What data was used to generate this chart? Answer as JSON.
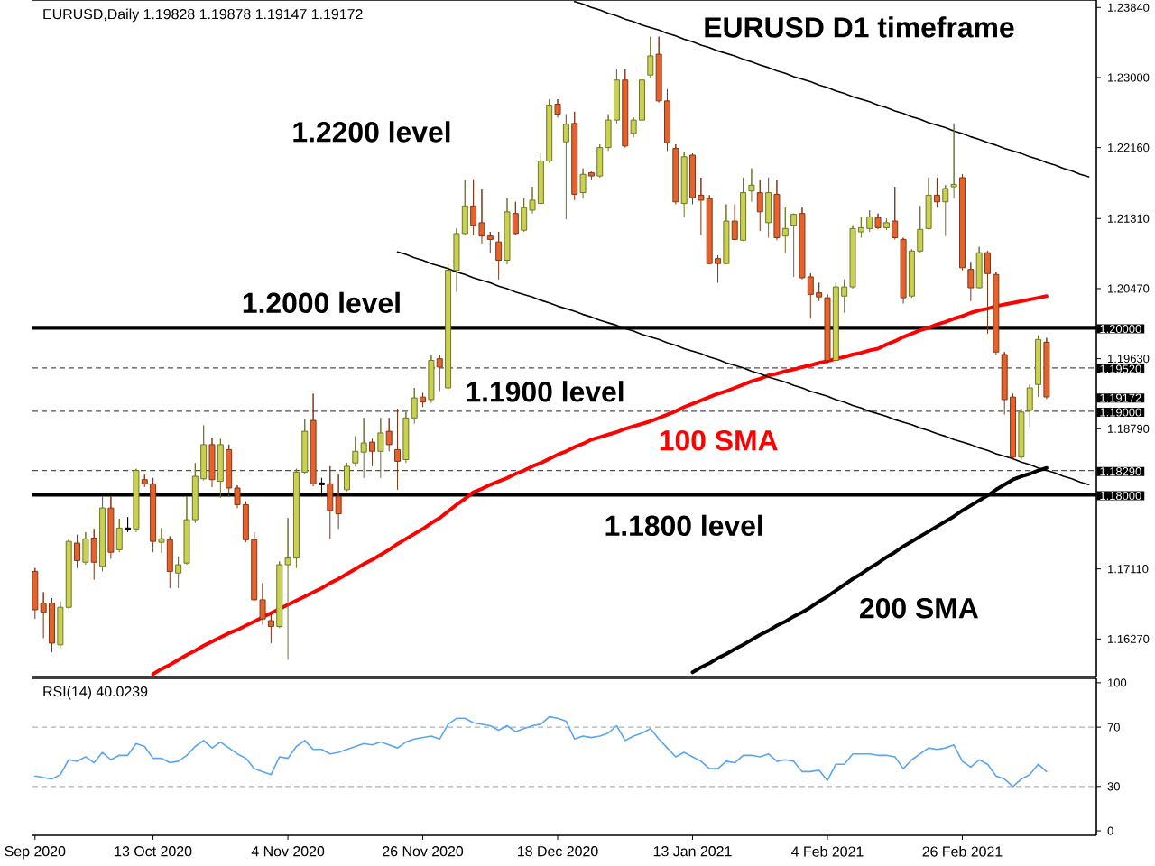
{
  "chart_data": [
    {
      "type": "candlestick",
      "title": "EURUSD D1 timeframe",
      "subtitle": "EURUSD,Daily 1.19828 1.19878 1.19147 1.19172",
      "categories": [
        null,
        null,
        null,
        null,
        null,
        null,
        null,
        null,
        null,
        null,
        null,
        null,
        null,
        null,
        null,
        null,
        null,
        null,
        null,
        null,
        null,
        null,
        null,
        null,
        null,
        null,
        null,
        null,
        null,
        null,
        null,
        null,
        null,
        null,
        null,
        null,
        null,
        null,
        null,
        null,
        null,
        null,
        null,
        null,
        null,
        null,
        null,
        null,
        null,
        null,
        null,
        null,
        null,
        null,
        null,
        null,
        null,
        null,
        null,
        null,
        null,
        null,
        null,
        null,
        null,
        null,
        null,
        null,
        null,
        null,
        null,
        null,
        null,
        null,
        null,
        null,
        null,
        null,
        null,
        null,
        null,
        null,
        null,
        null,
        null,
        null,
        null,
        null,
        null,
        null,
        null,
        null,
        null,
        null,
        null,
        null,
        null,
        null,
        null,
        null,
        null,
        null,
        null,
        null,
        null,
        null,
        null,
        null,
        null,
        null,
        null,
        null,
        null,
        null,
        null,
        null,
        null,
        null,
        null,
        null,
        null,
        null,
        null,
        null,
        null,
        null
      ],
      "ohlc": [
        [
          1.1708,
          1.1712,
          1.1651,
          1.1662
        ],
        [
          1.167,
          1.1683,
          1.1628,
          1.1659
        ],
        [
          1.167,
          1.1676,
          1.1611,
          1.1622
        ],
        [
          1.162,
          1.1672,
          1.1616,
          1.1665
        ],
        [
          1.1665,
          1.1747,
          1.1663,
          1.1744
        ],
        [
          1.1742,
          1.1752,
          1.1712,
          1.1721
        ],
        [
          1.1719,
          1.1755,
          1.1716,
          1.1747
        ],
        [
          1.1748,
          1.1759,
          1.1698,
          1.1719
        ],
        [
          1.1714,
          1.1798,
          1.1708,
          1.1784
        ],
        [
          1.1784,
          1.1798,
          1.1723,
          1.1731
        ],
        [
          1.1734,
          1.1771,
          1.1731,
          1.176
        ],
        [
          1.1759,
          1.1773,
          1.1755,
          1.1759
        ],
        [
          1.1759,
          1.1831,
          1.1755,
          1.1829
        ],
        [
          1.1818,
          1.1824,
          1.1809,
          1.1813
        ],
        [
          1.1813,
          1.182,
          1.1731,
          1.1744
        ],
        [
          1.1744,
          1.176,
          1.173,
          1.1746
        ],
        [
          1.1746,
          1.175,
          1.1688,
          1.1708
        ],
        [
          1.1706,
          1.1726,
          1.1688,
          1.1716
        ],
        [
          1.1718,
          1.1798,
          1.1716,
          1.177
        ],
        [
          1.177,
          1.1838,
          1.1766,
          1.1822
        ],
        [
          1.1819,
          1.1883,
          1.1817,
          1.186
        ],
        [
          1.186,
          1.1868,
          1.1809,
          1.1818
        ],
        [
          1.1816,
          1.1867,
          1.1796,
          1.186
        ],
        [
          1.1854,
          1.186,
          1.1798,
          1.1808
        ],
        [
          1.1808,
          1.1811,
          1.1784,
          1.1788
        ],
        [
          1.1788,
          1.1792,
          1.1743,
          1.1746
        ],
        [
          1.1746,
          1.1755,
          1.1672,
          1.1674
        ],
        [
          1.1674,
          1.1694,
          1.1644,
          1.1651
        ],
        [
          1.1649,
          1.1658,
          1.1622,
          1.1642
        ],
        [
          1.1642,
          1.172,
          1.164,
          1.1716
        ],
        [
          1.1716,
          1.1772,
          1.1602,
          1.1724
        ],
        [
          1.1724,
          1.1831,
          1.1712,
          1.1827
        ],
        [
          1.1827,
          1.1891,
          1.1824,
          1.1876
        ],
        [
          1.1889,
          1.1921,
          1.181,
          1.1813
        ],
        [
          1.1813,
          1.182,
          1.1798,
          1.1813
        ],
        [
          1.1813,
          1.1834,
          1.1747,
          1.1781
        ],
        [
          1.1798,
          1.1824,
          1.1759,
          1.1777
        ],
        [
          1.1806,
          1.1838,
          1.1804,
          1.1834
        ],
        [
          1.1838,
          1.187,
          1.1834,
          1.1852
        ],
        [
          1.1851,
          1.1892,
          1.182,
          1.1862
        ],
        [
          1.1863,
          1.1867,
          1.1834,
          1.1852
        ],
        [
          1.1852,
          1.1892,
          1.182,
          1.1874
        ],
        [
          1.1876,
          1.1892,
          1.1852,
          1.186
        ],
        [
          1.1854,
          1.1903,
          1.1806,
          1.184
        ],
        [
          1.1842,
          1.1899,
          1.1838,
          1.1892
        ],
        [
          1.1892,
          1.1928,
          1.1885,
          1.1916
        ],
        [
          1.1917,
          1.1922,
          1.1905,
          1.1911
        ],
        [
          1.1914,
          1.1968,
          1.191,
          1.1961
        ],
        [
          1.1963,
          1.1968,
          1.1924,
          1.1953
        ],
        [
          1.1928,
          1.2076,
          1.1924,
          1.2069
        ],
        [
          1.2069,
          1.2119,
          1.2043,
          1.2113
        ],
        [
          1.2113,
          1.2177,
          1.2111,
          1.2146
        ],
        [
          1.2146,
          1.2178,
          1.2111,
          1.2123
        ],
        [
          1.2126,
          1.2166,
          1.2101,
          1.211
        ],
        [
          1.211,
          1.2115,
          1.209,
          1.2106
        ],
        [
          1.2103,
          1.2115,
          1.2058,
          1.2081
        ],
        [
          1.2081,
          1.2155,
          1.2076,
          1.2139
        ],
        [
          1.2137,
          1.2151,
          1.2111,
          1.2113
        ],
        [
          1.2117,
          1.2155,
          1.2115,
          1.2144
        ],
        [
          1.2141,
          1.2169,
          1.2137,
          1.2153
        ],
        [
          1.2149,
          1.2209,
          1.2148,
          1.22
        ],
        [
          1.22,
          1.2274,
          1.2198,
          1.2267
        ],
        [
          1.2268,
          1.2274,
          1.2252,
          1.2256
        ],
        [
          1.2223,
          1.2256,
          1.213,
          1.2244
        ],
        [
          1.2245,
          1.2259,
          1.2153,
          1.216
        ],
        [
          1.2162,
          1.2191,
          1.2155,
          1.2184
        ],
        [
          1.2186,
          1.2187,
          1.2177,
          1.2182
        ],
        [
          1.2182,
          1.222,
          1.218,
          1.2216
        ],
        [
          1.2216,
          1.2256,
          1.2212,
          1.2249
        ],
        [
          1.2249,
          1.231,
          1.2245,
          1.2297
        ],
        [
          1.2297,
          1.231,
          1.2216,
          1.2218
        ],
        [
          1.2233,
          1.2252,
          1.2228,
          1.2249
        ],
        [
          1.2249,
          1.231,
          1.2245,
          1.2297
        ],
        [
          1.2303,
          1.2349,
          1.2299,
          1.2326
        ],
        [
          1.2328,
          1.2349,
          1.227,
          1.2272
        ],
        [
          1.2272,
          1.2286,
          1.2212,
          1.2222
        ],
        [
          1.2215,
          1.222,
          1.2148,
          1.2151
        ],
        [
          1.2149,
          1.2211,
          1.2133,
          1.2205
        ],
        [
          1.2207,
          1.2209,
          1.2148,
          1.2156
        ],
        [
          1.2159,
          1.218,
          1.2111,
          1.2153
        ],
        [
          1.2155,
          1.2159,
          1.2076,
          1.2077
        ],
        [
          1.2083,
          1.2087,
          1.2054,
          1.2077
        ],
        [
          1.2077,
          1.2148,
          1.2076,
          1.2128
        ],
        [
          1.2128,
          1.2148,
          1.2105,
          1.2106
        ],
        [
          1.2105,
          1.218,
          1.2104,
          1.2162
        ],
        [
          1.2164,
          1.2191,
          1.2151,
          1.2171
        ],
        [
          1.2162,
          1.2177,
          1.2116,
          1.2139
        ],
        [
          1.2126,
          1.218,
          1.2108,
          1.2162
        ],
        [
          1.216,
          1.2177,
          1.2105,
          1.2108
        ],
        [
          1.211,
          1.2144,
          1.209,
          1.2119
        ],
        [
          1.2123,
          1.2137,
          1.2061,
          1.2136
        ],
        [
          1.2137,
          1.2144,
          1.2058,
          1.206
        ],
        [
          1.2061,
          1.2065,
          1.2011,
          1.204
        ],
        [
          1.2042,
          1.2054,
          1.2032,
          1.2037
        ],
        [
          1.2036,
          1.204,
          1.1957,
          1.1961
        ],
        [
          1.1961,
          1.2054,
          1.1957,
          1.2049
        ],
        [
          1.2038,
          1.2058,
          1.2018,
          1.2049
        ],
        [
          1.2049,
          1.2123,
          1.2047,
          1.2119
        ],
        [
          1.2115,
          1.2133,
          1.2108,
          1.212
        ],
        [
          1.2119,
          1.2141,
          1.2115,
          1.2133
        ],
        [
          1.2132,
          1.2137,
          1.2118,
          1.212
        ],
        [
          1.212,
          1.2131,
          1.2117,
          1.2126
        ],
        [
          1.2128,
          1.2169,
          1.2106,
          1.2108
        ],
        [
          1.2106,
          1.2108,
          1.2029,
          1.2036
        ],
        [
          1.2038,
          1.2094,
          1.2036,
          1.2092
        ],
        [
          1.2092,
          1.2146,
          1.209,
          1.2118
        ],
        [
          1.2119,
          1.218,
          1.2118,
          1.2159
        ],
        [
          1.2159,
          1.218,
          1.2144,
          1.2151
        ],
        [
          1.2151,
          1.2171,
          1.211,
          1.2167
        ],
        [
          1.2169,
          1.2245,
          1.2155,
          1.2172
        ],
        [
          1.218,
          1.2184,
          1.2069,
          1.2072
        ],
        [
          1.207,
          1.2079,
          1.2032,
          1.2048
        ],
        [
          1.2048,
          1.2097,
          1.2047,
          1.209
        ],
        [
          1.209,
          1.2092,
          1.1993,
          1.2065
        ],
        [
          1.2064,
          1.2067,
          1.1968,
          1.1971
        ],
        [
          1.1968,
          1.1971,
          1.1896,
          1.1914
        ],
        [
          1.1917,
          1.1921,
          1.1842,
          1.1845
        ],
        [
          1.1845,
          1.1903,
          1.1842,
          1.1899
        ],
        [
          1.1901,
          1.1932,
          1.1881,
          1.1928
        ],
        [
          1.1932,
          1.1991,
          1.1917,
          1.1986
        ],
        [
          1.19828,
          1.19878,
          1.19147,
          1.19172
        ],
        null,
        null,
        null,
        null,
        null
      ],
      "colors": [
        "#e5622b",
        "#e5622b",
        "#e5622b",
        "#c8d24e",
        "#c8d24e",
        "#e5622b",
        "#c8d24e",
        "#e5622b",
        "#c8d24e",
        "#e5622b",
        "#c8d24e",
        "#000000",
        "#c8d24e",
        "#e5622b",
        "#e5622b",
        "#c8d24e",
        "#e5622b",
        "#c8d24e",
        "#c8d24e",
        "#c8d24e",
        "#c8d24e",
        "#e5622b",
        "#c8d24e",
        "#e5622b",
        "#e5622b",
        "#e5622b",
        "#e5622b",
        "#e5622b",
        "#e5622b",
        "#c8d24e",
        "#c8d24e",
        "#c8d24e",
        "#c8d24e",
        "#e5622b",
        "#000000",
        "#e5622b",
        "#e5622b",
        "#c8d24e",
        "#c8d24e",
        "#c8d24e",
        "#e5622b",
        "#c8d24e",
        "#e5622b",
        "#e5622b",
        "#c8d24e",
        "#c8d24e",
        "#e5622b",
        "#c8d24e",
        "#e5622b",
        "#c8d24e",
        "#c8d24e",
        "#c8d24e",
        "#e5622b",
        "#e5622b",
        "#e5622b",
        "#e5622b",
        "#c8d24e",
        "#e5622b",
        "#c8d24e",
        "#c8d24e",
        "#c8d24e",
        "#c8d24e",
        "#e5622b",
        "#c8d24e",
        "#e5622b",
        "#c8d24e",
        "#e5622b",
        "#c8d24e",
        "#c8d24e",
        "#c8d24e",
        "#e5622b",
        "#c8d24e",
        "#c8d24e",
        "#c8d24e",
        "#e5622b",
        "#e5622b",
        "#e5622b",
        "#c8d24e",
        "#e5622b",
        "#e5622b",
        "#e5622b",
        "#e5622b",
        "#c8d24e",
        "#e5622b",
        "#c8d24e",
        "#c8d24e",
        "#e5622b",
        "#c8d24e",
        "#e5622b",
        "#c8d24e",
        "#c8d24e",
        "#e5622b",
        "#e5622b",
        "#e5622b",
        "#e5622b",
        "#c8d24e",
        "#c8d24e",
        "#c8d24e",
        "#c8d24e",
        "#c8d24e",
        "#e5622b",
        "#c8d24e",
        "#e5622b",
        "#e5622b",
        "#c8d24e",
        "#c8d24e",
        "#c8d24e",
        "#e5622b",
        "#c8d24e",
        "#c8d24e",
        "#e5622b",
        "#e5622b",
        "#c8d24e",
        "#e5622b",
        "#e5622b",
        "#e5622b",
        "#e5622b",
        "#c8d24e",
        "#c8d24e",
        "#c8d24e",
        "#e5622b",
        null,
        null,
        null,
        null,
        null
      ],
      "series": [
        {
          "name": "100 SMA",
          "type": "line",
          "color": "#ff0000",
          "values": [
            null,
            null,
            null,
            null,
            null,
            null,
            null,
            null,
            null,
            null,
            null,
            null,
            null,
            null,
            1.1585,
            1.1591,
            1.1596,
            1.1602,
            1.1608,
            1.1613,
            1.1619,
            1.1624,
            1.1629,
            1.1634,
            1.1638,
            1.1643,
            1.1648,
            1.1653,
            1.1658,
            1.1663,
            1.1668,
            1.1673,
            1.1678,
            1.1683,
            1.1688,
            1.1694,
            1.1699,
            1.1705,
            1.1711,
            1.1717,
            1.1722,
            1.1728,
            1.1734,
            1.1741,
            1.1747,
            1.1753,
            1.1759,
            1.1766,
            1.1772,
            1.178,
            1.1788,
            1.1795,
            1.1803,
            1.1807,
            1.1812,
            1.1816,
            1.182,
            1.1825,
            1.1829,
            1.1834,
            1.1838,
            1.1843,
            1.1848,
            1.1852,
            1.1857,
            1.1861,
            1.1866,
            1.1869,
            1.1872,
            1.1875,
            1.1879,
            1.1882,
            1.1885,
            1.1888,
            1.1892,
            1.1896,
            1.19,
            1.1905,
            1.1909,
            1.1913,
            1.1917,
            1.1921,
            1.1924,
            1.1928,
            1.1932,
            1.1936,
            1.1939,
            1.1943,
            1.1945,
            1.1948,
            1.195,
            1.1953,
            1.1955,
            1.1958,
            1.196,
            1.1963,
            1.1965,
            1.1968,
            1.197,
            1.1973,
            1.1975,
            1.198,
            1.1984,
            1.1989,
            1.1993,
            1.1997,
            1.2,
            1.2004,
            1.2007,
            1.2011,
            1.2014,
            1.2018,
            1.2021,
            1.2023,
            1.2026,
            1.2028,
            1.203,
            1.2032,
            1.2034,
            1.2036,
            1.2038,
            null,
            null,
            null,
            null,
            null
          ]
        },
        {
          "name": "200 SMA",
          "type": "line",
          "color": "#000000",
          "values": [
            null,
            null,
            null,
            null,
            null,
            null,
            null,
            null,
            null,
            null,
            null,
            null,
            null,
            null,
            null,
            null,
            null,
            null,
            null,
            null,
            null,
            null,
            null,
            null,
            null,
            null,
            null,
            null,
            null,
            null,
            null,
            null,
            null,
            null,
            null,
            null,
            null,
            null,
            null,
            null,
            null,
            null,
            null,
            null,
            null,
            null,
            null,
            null,
            null,
            null,
            null,
            null,
            null,
            null,
            null,
            null,
            null,
            null,
            null,
            null,
            null,
            null,
            null,
            null,
            null,
            null,
            null,
            null,
            null,
            null,
            null,
            null,
            null,
            null,
            null,
            null,
            null,
            null,
            1.1587,
            1.1593,
            1.1598,
            1.1604,
            1.1609,
            1.1615,
            1.162,
            1.1626,
            1.1632,
            1.1637,
            1.1643,
            1.1648,
            1.1654,
            1.1659,
            1.1665,
            1.1672,
            1.1678,
            1.1685,
            1.1692,
            1.1699,
            1.1705,
            1.1712,
            1.1718,
            1.1725,
            1.1731,
            1.1738,
            1.1744,
            1.175,
            1.1756,
            1.1762,
            1.1768,
            1.1774,
            1.1781,
            1.1787,
            1.1793,
            1.1799,
            1.1806,
            1.1812,
            1.1818,
            1.1822,
            1.1825,
            1.1829,
            1.1832,
            null,
            null,
            null,
            null,
            null
          ]
        },
        {
          "type": "line",
          "color": "#000000",
          "values": [
            null,
            null,
            null,
            null,
            null,
            null,
            null,
            null,
            null,
            null,
            null,
            null,
            null,
            null,
            null,
            null,
            null,
            null,
            null,
            null,
            null,
            null,
            null,
            null,
            null,
            null,
            null,
            null,
            null,
            null,
            null,
            null,
            null,
            null,
            null,
            null,
            null,
            null,
            null,
            null,
            null,
            null,
            null,
            null,
            null,
            null,
            null,
            null,
            null,
            null,
            null,
            null,
            null,
            null,
            null,
            null,
            null,
            null,
            null,
            null,
            null,
            null,
            null,
            null,
            1.2391,
            1.2388,
            1.2384,
            1.2381,
            1.2377,
            1.2374,
            1.237,
            1.2367,
            1.2363,
            1.236,
            1.2357,
            1.2353,
            1.235,
            1.2346,
            1.2343,
            1.2339,
            1.2336,
            1.2332,
            1.2329,
            1.2326,
            1.2322,
            1.2319,
            1.2315,
            1.2312,
            1.2308,
            1.2305,
            1.2301,
            1.2298,
            1.2295,
            1.2291,
            1.2288,
            1.2284,
            1.2281,
            1.2277,
            1.2274,
            1.2271,
            1.2267,
            1.2264,
            1.226,
            1.2257,
            1.2253,
            1.225,
            1.2246,
            1.2243,
            1.224,
            1.2236,
            1.2233,
            1.2229,
            1.2226,
            1.2222,
            1.2219,
            1.2215,
            1.2212,
            1.2209,
            1.2205,
            1.2202,
            1.2198,
            1.2195,
            1.2191,
            1.2188,
            1.2184,
            1.2181
          ]
        },
        {
          "type": "line",
          "color": "#000000",
          "values": [
            null,
            null,
            null,
            null,
            null,
            null,
            null,
            null,
            null,
            null,
            null,
            null,
            null,
            null,
            null,
            null,
            null,
            null,
            null,
            null,
            null,
            null,
            null,
            null,
            null,
            null,
            null,
            null,
            null,
            null,
            null,
            null,
            null,
            null,
            null,
            null,
            null,
            null,
            null,
            null,
            null,
            null,
            null,
            1.2091,
            1.2088,
            1.2084,
            1.2081,
            1.2077,
            1.2074,
            1.2071,
            1.2067,
            1.2064,
            1.206,
            1.2057,
            1.2054,
            1.205,
            1.2047,
            1.2043,
            1.204,
            1.2037,
            1.2033,
            1.203,
            1.2026,
            1.2023,
            1.202,
            1.2016,
            1.2013,
            1.2009,
            1.2006,
            1.2003,
            1.1999,
            1.1996,
            1.1992,
            1.1989,
            1.1986,
            1.1982,
            1.1979,
            1.1975,
            1.1972,
            1.1969,
            1.1965,
            1.1962,
            1.1958,
            1.1955,
            1.1952,
            1.1948,
            1.1945,
            1.1941,
            1.1938,
            1.1935,
            1.1931,
            1.1928,
            1.1924,
            1.1921,
            1.1918,
            1.1914,
            1.1911,
            1.1907,
            1.1904,
            1.19,
            1.1897,
            1.1894,
            1.189,
            1.1887,
            1.1884,
            1.188,
            1.1877,
            1.1873,
            1.187,
            1.1866,
            1.1863,
            1.186,
            1.1856,
            1.1853,
            1.1849,
            1.1846,
            1.1843,
            1.1839,
            1.1836,
            1.1832,
            1.1829,
            1.1826,
            1.1822,
            1.1819,
            1.1815,
            1.1812
          ]
        }
      ],
      "ylim": [
        1.1582,
        1.2393
      ],
      "yticks": [
        {
          "value": 1.1627,
          "label": "1.16270"
        },
        {
          "value": 1.1711,
          "label": "1.17110"
        },
        {
          "value": 1.1879,
          "label": "1.18790"
        },
        {
          "value": 1.1963,
          "label": "1.19630"
        },
        {
          "value": 1.2047,
          "label": "1.20470"
        },
        {
          "value": 1.2131,
          "label": "1.21310"
        },
        {
          "value": 1.2216,
          "label": "1.22160"
        },
        {
          "value": 1.23,
          "label": "1.23000"
        },
        {
          "value": 1.2384,
          "label": "1.23840"
        }
      ],
      "tick_labels": "y",
      "ref_lines": [
        {
          "axis": "y",
          "value": 1.2,
          "label": "1.20000",
          "color": "#000000",
          "line_style": "solid"
        },
        {
          "axis": "y",
          "value": 1.1952,
          "label": "1.19520",
          "color": "#505050",
          "line_style": "dashed"
        },
        {
          "axis": "y",
          "value": 1.19,
          "label": "1.19000",
          "color": "#505050",
          "line_style": "dashed"
        },
        {
          "axis": "y",
          "value": 1.1829,
          "label": "1.18290",
          "color": "#505050",
          "line_style": "dashed"
        },
        {
          "axis": "y",
          "value": 1.18,
          "label": "1.18000",
          "color": "#000000",
          "line_style": "solid"
        }
      ],
      "annotations": [
        "1.2200 level",
        {
          "text": "1.2000 level",
          "y": 1.2
        },
        {
          "text": "1.1900 level",
          "y": 1.19
        },
        {
          "text": "1.1800 level",
          "y": 1.18
        },
        "1.19172"
      ]
    },
    {
      "type": "line",
      "title": "RSI(14) 40.0239",
      "categories": [
        "Sep 2020",
        null,
        null,
        null,
        null,
        null,
        null,
        null,
        null,
        null,
        null,
        null,
        null,
        null,
        "13 Oct 2020",
        null,
        null,
        null,
        null,
        null,
        null,
        null,
        null,
        null,
        null,
        null,
        null,
        null,
        null,
        null,
        "4 Nov 2020",
        null,
        null,
        null,
        null,
        null,
        null,
        null,
        null,
        null,
        null,
        null,
        null,
        null,
        null,
        null,
        "26 Nov 2020",
        null,
        null,
        null,
        null,
        null,
        null,
        null,
        null,
        null,
        null,
        null,
        null,
        null,
        null,
        null,
        "18 Dec 2020",
        null,
        null,
        null,
        null,
        null,
        null,
        null,
        null,
        null,
        null,
        null,
        null,
        null,
        null,
        null,
        "13 Jan 2021",
        null,
        null,
        null,
        null,
        null,
        null,
        null,
        null,
        null,
        null,
        null,
        null,
        null,
        null,
        null,
        "4 Feb 2021",
        null,
        null,
        null,
        null,
        null,
        null,
        null,
        null,
        null,
        null,
        null,
        null,
        null,
        null,
        null,
        "26 Feb 2021",
        null,
        null,
        null,
        null,
        null,
        null,
        null,
        null,
        null,
        null,
        null,
        null,
        null,
        null,
        null
      ],
      "series": [
        {
          "color": "#5aa5f0",
          "values": [
            37,
            36,
            35,
            38,
            48,
            47,
            50,
            46,
            53,
            48,
            51,
            51,
            59,
            57,
            49,
            49,
            46,
            47,
            51,
            57,
            61,
            56,
            60,
            56,
            52,
            49,
            42,
            40,
            38,
            50,
            49,
            57,
            61,
            55,
            55,
            52,
            53,
            55,
            57,
            59,
            58,
            60,
            58,
            56,
            60,
            62,
            63,
            64,
            62,
            72,
            76,
            76,
            73,
            72,
            71,
            68,
            71,
            67,
            69,
            71,
            72,
            77,
            76,
            74,
            62,
            64,
            63,
            64,
            66,
            71,
            61,
            64,
            66,
            69,
            62,
            56,
            50,
            53,
            50,
            47,
            42,
            42,
            47,
            46,
            51,
            51,
            50,
            52,
            47,
            48,
            47,
            40,
            40,
            41,
            34,
            45,
            45,
            52,
            52,
            52,
            51,
            51,
            50,
            42,
            48,
            52,
            56,
            55,
            56,
            58,
            47,
            43,
            48,
            45,
            37,
            35,
            30,
            35,
            38,
            45,
            40.0239,
            null,
            null,
            null,
            null,
            null
          ]
        }
      ],
      "ylim": [
        -3,
        103
      ],
      "yticks": [
        0,
        30,
        70,
        100
      ],
      "ref_lines": [
        {
          "axis": "y",
          "value": 30,
          "color": "#b0b0b0",
          "line_style": "dashed"
        },
        {
          "axis": "y",
          "value": 70,
          "color": "#b0b0b0",
          "line_style": "dashed"
        }
      ]
    }
  ]
}
